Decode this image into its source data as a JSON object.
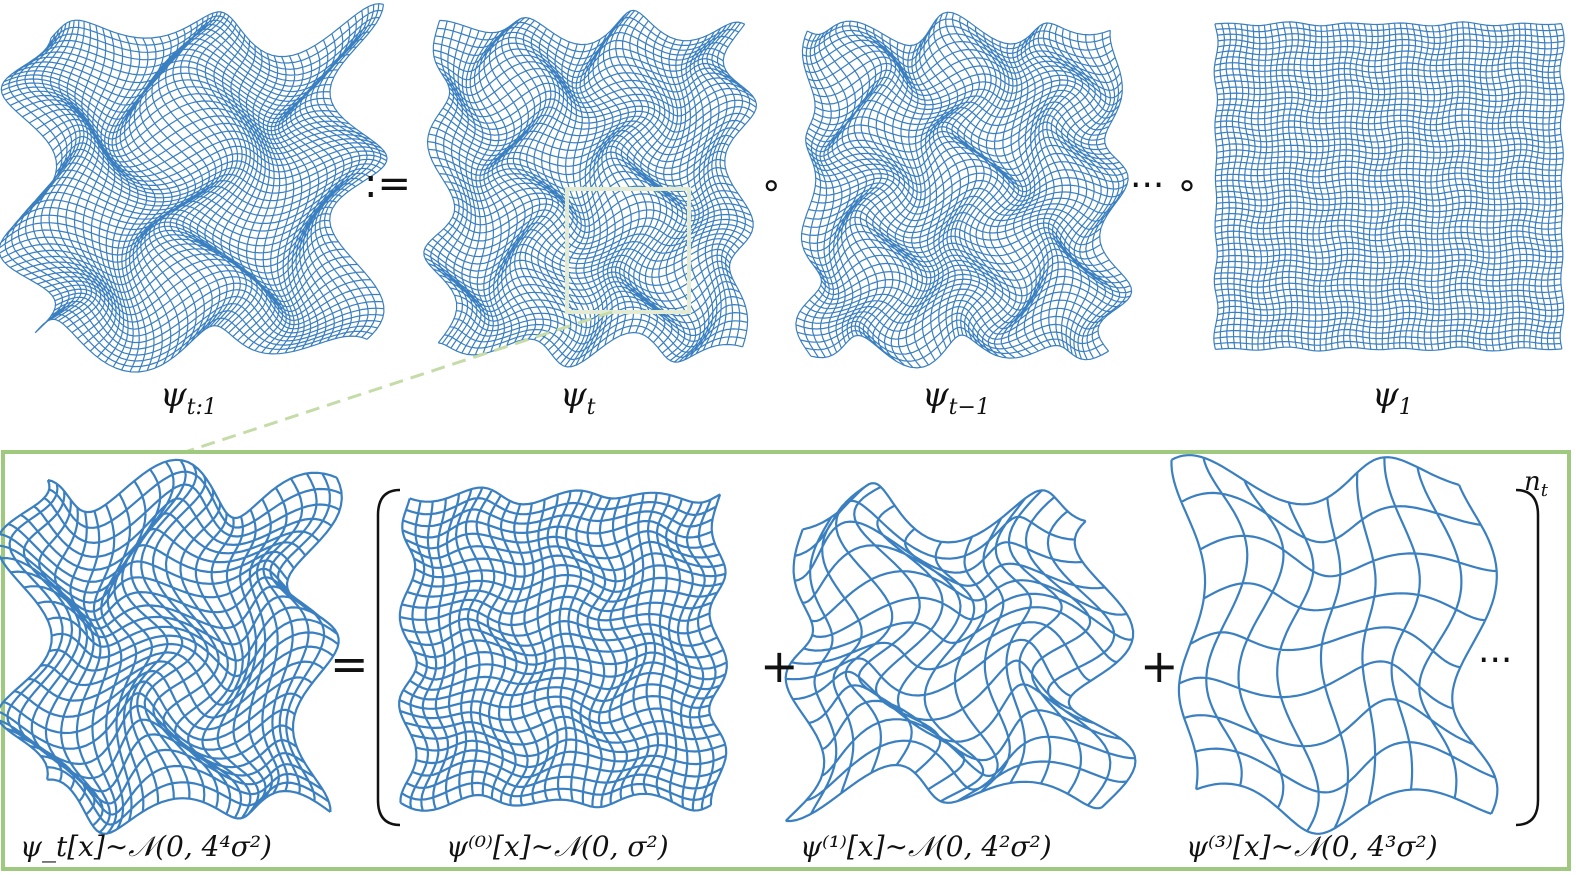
{
  "top_row": {
    "panels": [
      {
        "id": "psi_t1",
        "base": "ψ",
        "sub": "t:1",
        "density": 54,
        "amp": 0.055,
        "freq": 2.3,
        "seed": 1.3
      },
      {
        "id": "psi_t",
        "base": "ψ",
        "sub": "t",
        "density": 50,
        "amp": 0.035,
        "freq": 3.1,
        "seed": 2.7
      },
      {
        "id": "psi_tm1",
        "base": "ψ",
        "sub": "t−1",
        "density": 50,
        "amp": 0.035,
        "freq": 3.3,
        "seed": 4.1
      },
      {
        "id": "psi_1",
        "base": "ψ",
        "sub": "1",
        "density": 56,
        "amp": 0.004,
        "freq": 6.0,
        "seed": 5.9
      }
    ],
    "operators": {
      "define": ":=",
      "compose": "∘",
      "compose_ellipsis": "··· ∘"
    }
  },
  "bottom_row": {
    "panels": [
      {
        "id": "psi_t_x",
        "label": "ψ_t[x]∼𝒩(0, 4⁴σ²)",
        "density": 26,
        "amp": 0.06,
        "freq": 2.2,
        "seed": 7.2
      },
      {
        "id": "psi0_x",
        "label": "ψ⁽⁰⁾[x]∼𝒩(0, σ²)",
        "density": 28,
        "amp": 0.018,
        "freq": 3.5,
        "seed": 8.4
      },
      {
        "id": "psi1_x",
        "label": "ψ⁽¹⁾[x]∼𝒩(0, 4²σ²)",
        "density": 14,
        "amp": 0.07,
        "freq": 2.0,
        "seed": 9.6
      },
      {
        "id": "psi3_x",
        "label": "ψ⁽³⁾[x]∼𝒩(0, 4³σ²)",
        "density": 8,
        "amp": 0.05,
        "freq": 1.6,
        "seed": 11.3
      }
    ],
    "operators": {
      "equals": "=",
      "plus": "+",
      "ellipsis": "···",
      "exponent": "n_t"
    }
  },
  "colors": {
    "grid": "#3a7fc0",
    "frame": "#9ec97f",
    "highlight": "#e3ecd3",
    "leader": "#c5dca8"
  }
}
